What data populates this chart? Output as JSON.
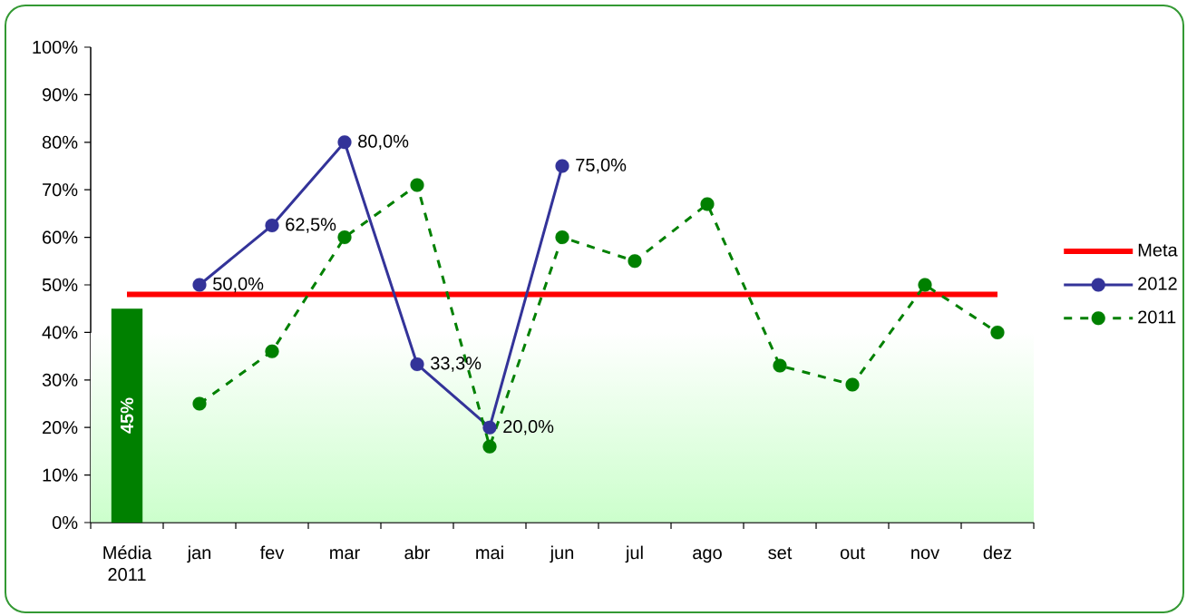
{
  "chart_data": {
    "type": "line",
    "categories": [
      "Média 2011",
      "jan",
      "fev",
      "mar",
      "abr",
      "mai",
      "jun",
      "jul",
      "ago",
      "set",
      "out",
      "nov",
      "dez"
    ],
    "series": [
      {
        "type": "bar",
        "color": "#008000",
        "values": [
          45,
          null,
          null,
          null,
          null,
          null,
          null,
          null,
          null,
          null,
          null,
          null,
          null
        ],
        "value_labels": [
          "45%",
          null,
          null,
          null,
          null,
          null,
          null,
          null,
          null,
          null,
          null,
          null,
          null
        ]
      },
      {
        "name": "Meta",
        "color": "#ff0000",
        "marker": "none",
        "line_style": "solid",
        "values": [
          48,
          48,
          48,
          48,
          48,
          48,
          48,
          48,
          48,
          48,
          48,
          48,
          48
        ]
      },
      {
        "name": "2012",
        "color": "#333399",
        "marker": "circle",
        "line_style": "solid",
        "values": [
          null,
          50,
          62.5,
          80,
          33.3,
          20,
          75,
          null,
          null,
          null,
          null,
          null,
          null
        ],
        "value_labels": [
          null,
          "50,0%",
          "62,5%",
          "80,0%",
          "33,3%",
          "20,0%",
          "75,0%",
          null,
          null,
          null,
          null,
          null,
          null
        ]
      },
      {
        "name": "2011",
        "color": "#008000",
        "marker": "circle",
        "line_style": "dashed",
        "values": [
          null,
          25,
          36,
          60,
          71,
          16,
          60,
          55,
          67,
          33,
          29,
          50,
          40
        ]
      }
    ],
    "ylim": [
      0,
      100
    ],
    "yticks": [
      {
        "value": 0,
        "label": "0%"
      },
      {
        "value": 10,
        "label": "10%"
      },
      {
        "value": 20,
        "label": "20%"
      },
      {
        "value": 30,
        "label": "30%"
      },
      {
        "value": 40,
        "label": "40%"
      },
      {
        "value": 50,
        "label": "50%"
      },
      {
        "value": 60,
        "label": "60%"
      },
      {
        "value": 70,
        "label": "70%"
      },
      {
        "value": 80,
        "label": "80%"
      },
      {
        "value": 90,
        "label": "90%"
      },
      {
        "value": 100,
        "label": "100%"
      }
    ],
    "bands": [
      {
        "axis": "y",
        "from": 0,
        "to": 40,
        "color": "#ccffcc"
      }
    ],
    "legend": "right"
  }
}
